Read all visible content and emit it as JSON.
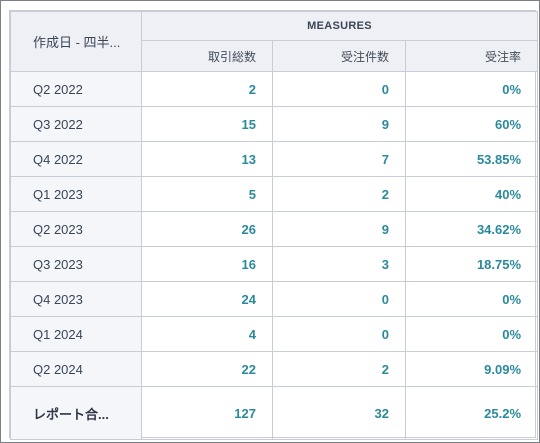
{
  "header": {
    "row_dimension_label": "作成日 - 四半...",
    "measures_label": "MEASURES",
    "columns": [
      "取引総数",
      "受注件数",
      "受注率"
    ]
  },
  "rows": [
    {
      "label": "Q2 2022",
      "values": [
        "2",
        "0",
        "0%"
      ]
    },
    {
      "label": "Q3 2022",
      "values": [
        "15",
        "9",
        "60%"
      ]
    },
    {
      "label": "Q4 2022",
      "values": [
        "13",
        "7",
        "53.85%"
      ]
    },
    {
      "label": "Q1 2023",
      "values": [
        "5",
        "2",
        "40%"
      ]
    },
    {
      "label": "Q2 2023",
      "values": [
        "26",
        "9",
        "34.62%"
      ]
    },
    {
      "label": "Q3 2023",
      "values": [
        "16",
        "3",
        "18.75%"
      ]
    },
    {
      "label": "Q4 2023",
      "values": [
        "24",
        "0",
        "0%"
      ]
    },
    {
      "label": "Q1 2024",
      "values": [
        "4",
        "0",
        "0%"
      ]
    },
    {
      "label": "Q2 2024",
      "values": [
        "22",
        "2",
        "9.09%"
      ]
    }
  ],
  "total": {
    "label": "レポート合...",
    "values": [
      "127",
      "32",
      "25.2%"
    ]
  },
  "colors": {
    "value_text": "#2a8a9c",
    "header_background": "#eef0f5",
    "row_label_background": "#f4f6fa",
    "grid_line": "#c8ccd6"
  }
}
